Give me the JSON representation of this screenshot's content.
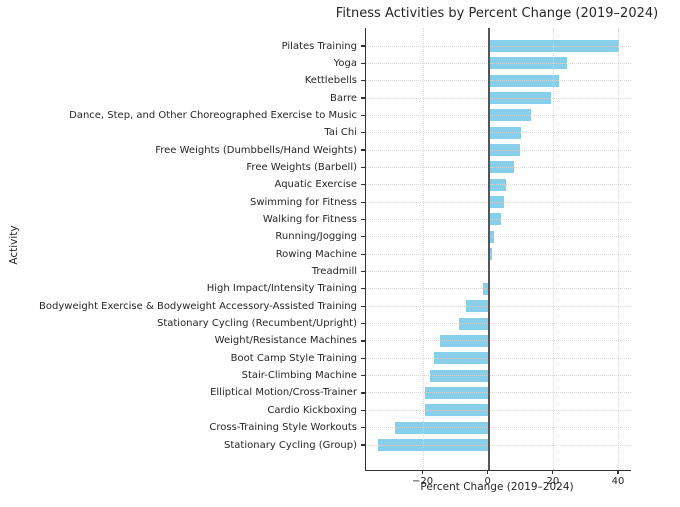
{
  "chart_data": {
    "type": "bar",
    "orientation": "horizontal",
    "title": "Fitness Activities by Percent Change (2019–2024)",
    "xlabel": "Percent Change (2019–2024)",
    "ylabel": "Activity",
    "categories": [
      "Pilates Training",
      "Yoga",
      "Kettlebells",
      "Barre",
      "Dance, Step, and Other Choreographed Exercise to Music",
      "Tai Chi",
      "Free Weights (Dumbbells/Hand Weights)",
      "Free Weights (Barbell)",
      "Aquatic Exercise",
      "Swimming for Fitness",
      "Walking for Fitness",
      "Running/Jogging",
      "Rowing Machine",
      "Treadmill",
      "High Impact/Intensity Training",
      "Bodyweight Exercise & Bodyweight Accessory-Assisted Training",
      "Stationary Cycling (Recumbent/Upright)",
      "Weight/Resistance Machines",
      "Boot Camp Style Training",
      "Stair-Climbing Machine",
      "Elliptical Motion/Cross-Trainer",
      "Cardio Kickboxing",
      "Cross-Training Style Workouts",
      "Stationary Cycling (Group)"
    ],
    "values": [
      40,
      24,
      21.6,
      19.2,
      13,
      10,
      9.5,
      7.8,
      5.3,
      4.6,
      3.8,
      1.7,
      1.1,
      0,
      -1.8,
      -6.9,
      -9.1,
      -14.9,
      -16.7,
      -17.9,
      -19.5,
      -19.7,
      -28.8,
      -34
    ],
    "xticks": [
      {
        "value": -20,
        "label": "−20"
      },
      {
        "value": 0,
        "label": "0"
      },
      {
        "value": 20,
        "label": "20"
      },
      {
        "value": 40,
        "label": "40"
      }
    ],
    "xlim": [
      -37.7,
      43.7
    ],
    "bar_color": "#87CEEB",
    "zero_line_color": "#555555",
    "spine_color": "#333333",
    "grid_style": "dotted",
    "legend": "none"
  }
}
